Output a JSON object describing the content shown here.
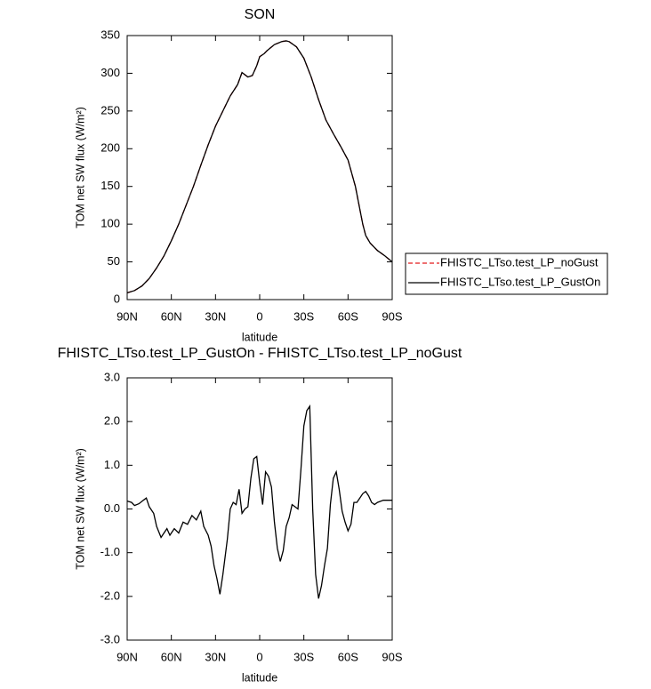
{
  "chart_data": [
    {
      "type": "line",
      "title": "SON",
      "xlabel": "latitude",
      "ylabel": "TOM net SW flux (W/m²)",
      "x": [
        90,
        85,
        80,
        75,
        70,
        65,
        60,
        55,
        50,
        45,
        40,
        35,
        30,
        25,
        20,
        15,
        12,
        8,
        5,
        2,
        0,
        -3,
        -5,
        -10,
        -15,
        -18,
        -20,
        -25,
        -30,
        -35,
        -40,
        -45,
        -50,
        -55,
        -60,
        -65,
        -70,
        -72,
        -75,
        -80,
        -85,
        -90
      ],
      "series": [
        {
          "name": "FHISTC_LTso.test_LP_noGust",
          "color": "#e41a1c",
          "dash": true,
          "values": [
            9,
            12,
            18,
            28,
            42,
            58,
            78,
            100,
            125,
            150,
            178,
            205,
            230,
            250,
            270,
            285,
            301,
            295,
            297,
            310,
            322,
            326,
            330,
            338,
            342,
            343,
            342,
            335,
            320,
            295,
            265,
            238,
            220,
            203,
            185,
            150,
            100,
            85,
            75,
            65,
            58,
            50
          ]
        },
        {
          "name": "FHISTC_LTso.test_LP_GustOn",
          "color": "#000000",
          "dash": false,
          "values": [
            9,
            12,
            18,
            28,
            42,
            58,
            78,
            100,
            125,
            150,
            178,
            205,
            230,
            250,
            270,
            285,
            301,
            295,
            297,
            310,
            322,
            326,
            330,
            338,
            342,
            343,
            342,
            335,
            320,
            295,
            265,
            238,
            220,
            203,
            185,
            150,
            100,
            85,
            75,
            65,
            58,
            50
          ]
        }
      ],
      "xlim": [
        90,
        -90
      ],
      "xticks": [
        {
          "value": 90,
          "label": "90N"
        },
        {
          "value": 60,
          "label": "60N"
        },
        {
          "value": 30,
          "label": "30N"
        },
        0,
        {
          "value": -30,
          "label": "30S"
        },
        {
          "value": -60,
          "label": "60S"
        },
        {
          "value": -90,
          "label": "90S"
        }
      ],
      "ylim": [
        0,
        350
      ],
      "yticks": [
        0,
        50,
        100,
        150,
        200,
        250,
        300,
        350
      ],
      "legend": "right"
    },
    {
      "type": "line",
      "title": "FHISTC_LTso.test_LP_GustOn - FHISTC_LTso.test_LP_noGust",
      "xlabel": "latitude",
      "ylabel": "TOM net SW flux (W/m²)",
      "x": [
        90,
        87,
        85,
        82,
        79,
        77,
        75,
        72,
        70,
        67,
        65,
        63,
        61,
        58,
        55,
        52,
        49,
        46,
        43,
        40,
        38,
        35,
        33,
        31,
        29,
        27,
        25,
        22,
        20,
        18,
        16,
        14,
        12,
        10,
        8,
        6,
        4,
        2,
        0,
        -2,
        -4,
        -6,
        -8,
        -10,
        -12,
        -14,
        -16,
        -18,
        -20,
        -22,
        -24,
        -26,
        -28,
        -30,
        -32,
        -34,
        -36,
        -38,
        -40,
        -42,
        -44,
        -46,
        -48,
        -50,
        -52,
        -54,
        -56,
        -58,
        -60,
        -62,
        -64,
        -66,
        -68,
        -70,
        -72,
        -74,
        -76,
        -78,
        -80,
        -84,
        -86,
        -90
      ],
      "series": [
        {
          "name": "FHISTC_LTso.test_LP_GustOn",
          "color": "#000000",
          "dash": false,
          "values": [
            0.18,
            0.15,
            0.08,
            0.12,
            0.2,
            0.25,
            0.05,
            -0.1,
            -0.4,
            -0.65,
            -0.55,
            -0.45,
            -0.6,
            -0.45,
            -0.55,
            -0.3,
            -0.35,
            -0.15,
            -0.25,
            -0.05,
            -0.4,
            -0.6,
            -0.85,
            -1.3,
            -1.6,
            -1.95,
            -1.5,
            -0.7,
            0.0,
            0.15,
            0.1,
            0.45,
            -0.1,
            0.0,
            0.05,
            0.7,
            1.15,
            1.2,
            0.6,
            0.1,
            0.85,
            0.75,
            0.5,
            -0.3,
            -0.9,
            -1.2,
            -0.95,
            -0.4,
            -0.2,
            0.1,
            0.05,
            0.0,
            0.9,
            1.9,
            2.25,
            2.35,
            0.0,
            -1.5,
            -2.05,
            -1.75,
            -1.3,
            -0.9,
            0.1,
            0.7,
            0.85,
            0.45,
            -0.05,
            -0.3,
            -0.5,
            -0.35,
            0.15,
            0.15,
            0.25,
            0.35,
            0.4,
            0.3,
            0.15,
            0.1,
            0.15,
            0.2,
            0.2,
            0.2
          ]
        }
      ],
      "xlim": [
        90,
        -90
      ],
      "xticks": [
        {
          "value": 90,
          "label": "90N"
        },
        {
          "value": 60,
          "label": "60N"
        },
        {
          "value": 30,
          "label": "30N"
        },
        0,
        {
          "value": -30,
          "label": "30S"
        },
        {
          "value": -60,
          "label": "60S"
        },
        {
          "value": -90,
          "label": "90S"
        }
      ],
      "ylim": [
        -3,
        3
      ],
      "yticks": [
        {
          "value": -3,
          "label": "-3.0"
        },
        {
          "value": -2,
          "label": "-2.0"
        },
        {
          "value": -1,
          "label": "-1.0"
        },
        {
          "value": 0,
          "label": "0.0"
        },
        {
          "value": 1,
          "label": "1.0"
        },
        {
          "value": 2,
          "label": "2.0"
        },
        {
          "value": 3,
          "label": "3.0"
        }
      ]
    }
  ]
}
